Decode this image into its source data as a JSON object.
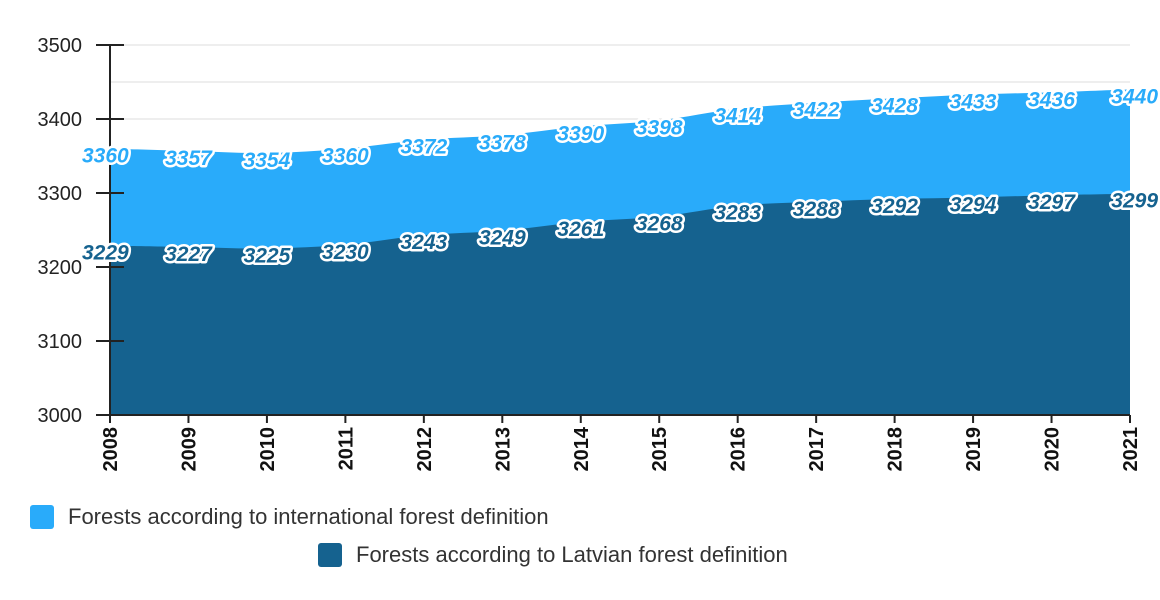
{
  "chart_data": {
    "type": "area",
    "x": [
      "2008",
      "2009",
      "2010",
      "2011",
      "2012",
      "2013",
      "2014",
      "2015",
      "2016",
      "2017",
      "2018",
      "2019",
      "2020",
      "2021"
    ],
    "series": [
      {
        "name": "Forests according to international forest definition",
        "values": [
          3360,
          3357,
          3354,
          3360,
          3372,
          3378,
          3390,
          3398,
          3414,
          3422,
          3428,
          3433,
          3436,
          3440
        ],
        "color": "#29abfa",
        "label_color": "#29abfa"
      },
      {
        "name": "Forests according to Latvian forest definition",
        "values": [
          3229,
          3227,
          3225,
          3230,
          3243,
          3249,
          3261,
          3268,
          3283,
          3288,
          3292,
          3294,
          3297,
          3299
        ],
        "color": "#15628f",
        "label_color": "#15628f"
      }
    ],
    "ylim": [
      3000,
      3500
    ],
    "yticks": [
      3000,
      3100,
      3200,
      3300,
      3400,
      3500
    ],
    "grid": true,
    "legend_position": "bottom",
    "title": "",
    "xlabel": "",
    "ylabel": ""
  }
}
